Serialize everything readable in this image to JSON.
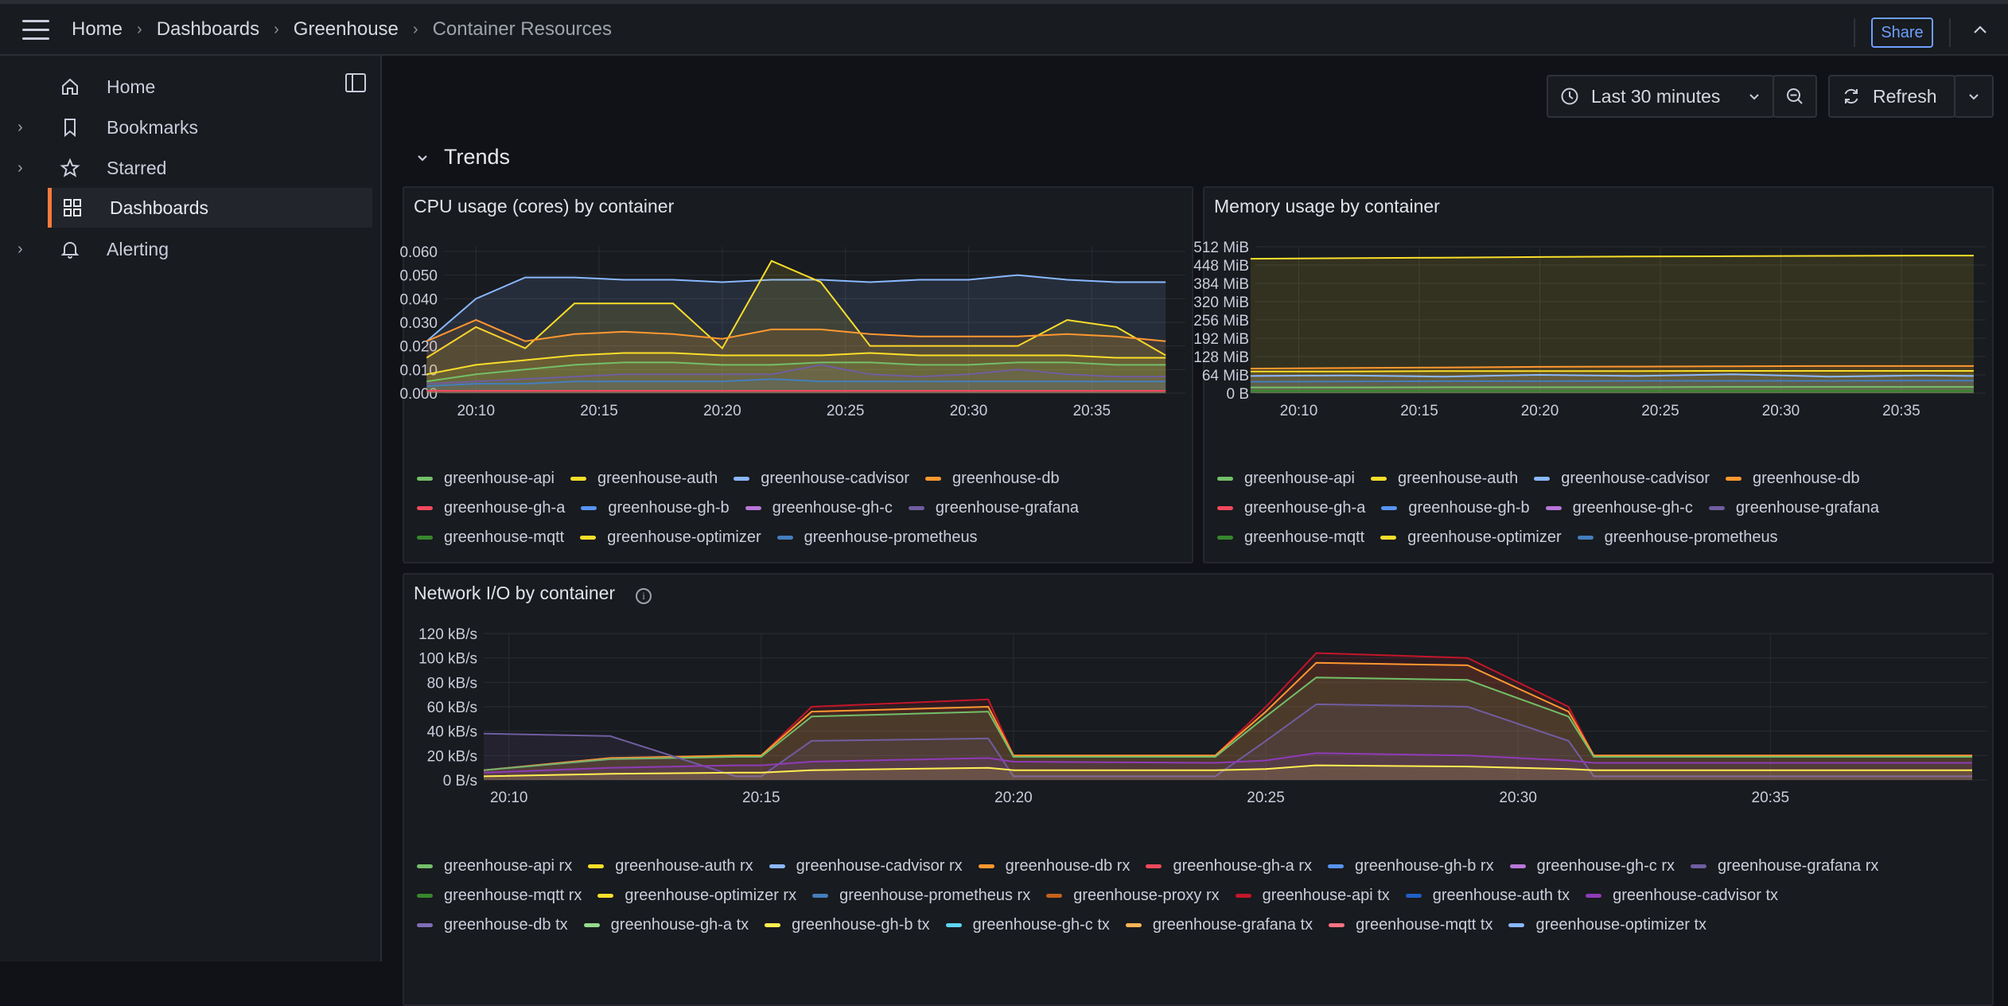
{
  "breadcrumb": {
    "items": [
      "Home",
      "Dashboards",
      "Greenhouse"
    ],
    "current": "Container Resources"
  },
  "topbar": {
    "share_label": "Share"
  },
  "sidebar": {
    "items": [
      {
        "label": "Home",
        "icon": "home-icon",
        "expandable": false,
        "active": false
      },
      {
        "label": "Bookmarks",
        "icon": "bookmark-icon",
        "expandable": true,
        "active": false
      },
      {
        "label": "Starred",
        "icon": "star-icon",
        "expandable": true,
        "active": false
      },
      {
        "label": "Dashboards",
        "icon": "apps-icon",
        "expandable": false,
        "active": true
      },
      {
        "label": "Alerting",
        "icon": "bell-icon",
        "expandable": true,
        "active": false
      }
    ]
  },
  "toolbar": {
    "time_range": "Last 30 minutes",
    "refresh_label": "Refresh"
  },
  "row": {
    "title": "Trends"
  },
  "colors": {
    "accent": "#ff7a3d",
    "link": "#6e9fff",
    "background": "#111217",
    "panel": "#181b1f"
  },
  "panels": {
    "cpu": {
      "title": "CPU usage (cores) by container",
      "legend": [
        {
          "name": "greenhouse-api",
          "color": "#73bf69"
        },
        {
          "name": "greenhouse-auth",
          "color": "#fade2a"
        },
        {
          "name": "greenhouse-cadvisor",
          "color": "#8ab8ff"
        },
        {
          "name": "greenhouse-db",
          "color": "#ff9830"
        },
        {
          "name": "greenhouse-gh-a",
          "color": "#f2495c"
        },
        {
          "name": "greenhouse-gh-b",
          "color": "#5794f2"
        },
        {
          "name": "greenhouse-gh-c",
          "color": "#b877d9"
        },
        {
          "name": "greenhouse-grafana",
          "color": "#705da0"
        },
        {
          "name": "greenhouse-mqtt",
          "color": "#37872d"
        },
        {
          "name": "greenhouse-optimizer",
          "color": "#fade2a"
        },
        {
          "name": "greenhouse-prometheus",
          "color": "#447ebc"
        }
      ]
    },
    "memory": {
      "title": "Memory usage by container",
      "legend": [
        {
          "name": "greenhouse-api",
          "color": "#73bf69"
        },
        {
          "name": "greenhouse-auth",
          "color": "#fade2a"
        },
        {
          "name": "greenhouse-cadvisor",
          "color": "#8ab8ff"
        },
        {
          "name": "greenhouse-db",
          "color": "#ff9830"
        },
        {
          "name": "greenhouse-gh-a",
          "color": "#f2495c"
        },
        {
          "name": "greenhouse-gh-b",
          "color": "#5794f2"
        },
        {
          "name": "greenhouse-gh-c",
          "color": "#b877d9"
        },
        {
          "name": "greenhouse-grafana",
          "color": "#705da0"
        },
        {
          "name": "greenhouse-mqtt",
          "color": "#37872d"
        },
        {
          "name": "greenhouse-optimizer",
          "color": "#fade2a"
        },
        {
          "name": "greenhouse-prometheus",
          "color": "#447ebc"
        }
      ]
    },
    "network": {
      "title": "Network I/O by container",
      "legend": [
        {
          "name": "greenhouse-api rx",
          "color": "#73bf69"
        },
        {
          "name": "greenhouse-auth rx",
          "color": "#fade2a"
        },
        {
          "name": "greenhouse-cadvisor rx",
          "color": "#8ab8ff"
        },
        {
          "name": "greenhouse-db rx",
          "color": "#ff9830"
        },
        {
          "name": "greenhouse-gh-a rx",
          "color": "#f2495c"
        },
        {
          "name": "greenhouse-gh-b rx",
          "color": "#5794f2"
        },
        {
          "name": "greenhouse-gh-c rx",
          "color": "#b877d9"
        },
        {
          "name": "greenhouse-grafana rx",
          "color": "#705da0"
        },
        {
          "name": "greenhouse-mqtt rx",
          "color": "#37872d"
        },
        {
          "name": "greenhouse-optimizer rx",
          "color": "#fade2a"
        },
        {
          "name": "greenhouse-prometheus rx",
          "color": "#447ebc"
        },
        {
          "name": "greenhouse-proxy rx",
          "color": "#c4621d"
        },
        {
          "name": "greenhouse-api tx",
          "color": "#c4162a"
        },
        {
          "name": "greenhouse-auth tx",
          "color": "#1f60c4"
        },
        {
          "name": "greenhouse-cadvisor tx",
          "color": "#8f3bb8"
        },
        {
          "name": "greenhouse-db tx",
          "color": "#806eb7"
        },
        {
          "name": "greenhouse-gh-a tx",
          "color": "#96d98d"
        },
        {
          "name": "greenhouse-gh-b tx",
          "color": "#ffee52"
        },
        {
          "name": "greenhouse-gh-c tx",
          "color": "#5fd4f5"
        },
        {
          "name": "greenhouse-grafana tx",
          "color": "#ffb357"
        },
        {
          "name": "greenhouse-mqtt tx",
          "color": "#ff7383"
        },
        {
          "name": "greenhouse-optimizer tx",
          "color": "#8ab8ff"
        }
      ]
    }
  },
  "chart_data": [
    {
      "type": "area",
      "title": "CPU usage (cores) by container",
      "x_ticks": [
        "20:10",
        "20:15",
        "20:20",
        "20:25",
        "20:30",
        "20:35"
      ],
      "y_ticks": [
        "0.000",
        "0.010",
        "0.020",
        "0.030",
        "0.040",
        "0.050",
        "0.060"
      ],
      "ylim": [
        0,
        0.062
      ],
      "x": [
        "20:08",
        "20:10",
        "20:12",
        "20:14",
        "20:16",
        "20:18",
        "20:20",
        "20:22",
        "20:24",
        "20:26",
        "20:28",
        "20:30",
        "20:32",
        "20:34",
        "20:36",
        "20:38"
      ],
      "series": [
        {
          "name": "greenhouse-cadvisor",
          "values": [
            0.022,
            0.04,
            0.049,
            0.049,
            0.048,
            0.048,
            0.047,
            0.048,
            0.048,
            0.047,
            0.048,
            0.048,
            0.05,
            0.048,
            0.047,
            0.047
          ]
        },
        {
          "name": "greenhouse-auth",
          "values": [
            0.015,
            0.028,
            0.019,
            0.038,
            0.038,
            0.038,
            0.019,
            0.056,
            0.047,
            0.02,
            0.02,
            0.02,
            0.02,
            0.031,
            0.028,
            0.016
          ]
        },
        {
          "name": "greenhouse-db",
          "values": [
            0.022,
            0.031,
            0.022,
            0.025,
            0.026,
            0.025,
            0.023,
            0.027,
            0.027,
            0.025,
            0.024,
            0.024,
            0.024,
            0.025,
            0.024,
            0.022
          ]
        },
        {
          "name": "greenhouse-optimizer",
          "values": [
            0.008,
            0.012,
            0.014,
            0.016,
            0.017,
            0.017,
            0.016,
            0.016,
            0.016,
            0.017,
            0.016,
            0.016,
            0.016,
            0.016,
            0.015,
            0.015
          ]
        },
        {
          "name": "greenhouse-api",
          "values": [
            0.005,
            0.008,
            0.01,
            0.012,
            0.013,
            0.013,
            0.012,
            0.012,
            0.013,
            0.013,
            0.012,
            0.012,
            0.013,
            0.013,
            0.012,
            0.012
          ]
        },
        {
          "name": "greenhouse-grafana",
          "values": [
            0.004,
            0.005,
            0.006,
            0.007,
            0.008,
            0.008,
            0.008,
            0.008,
            0.012,
            0.008,
            0.007,
            0.008,
            0.01,
            0.008,
            0.007,
            0.007
          ]
        },
        {
          "name": "greenhouse-prometheus",
          "values": [
            0.003,
            0.004,
            0.004,
            0.005,
            0.005,
            0.005,
            0.005,
            0.006,
            0.005,
            0.005,
            0.005,
            0.005,
            0.005,
            0.005,
            0.005,
            0.005
          ]
        },
        {
          "name": "greenhouse-gh-a",
          "values": [
            0.001,
            0.001,
            0.001,
            0.001,
            0.001,
            0.001,
            0.001,
            0.001,
            0.001,
            0.001,
            0.001,
            0.001,
            0.001,
            0.001,
            0.001,
            0.001
          ]
        }
      ]
    },
    {
      "type": "area",
      "title": "Memory usage by container",
      "x_ticks": [
        "20:10",
        "20:15",
        "20:20",
        "20:25",
        "20:30",
        "20:35"
      ],
      "y_ticks": [
        "0 B",
        "64 MiB",
        "128 MiB",
        "192 MiB",
        "256 MiB",
        "320 MiB",
        "384 MiB",
        "448 MiB",
        "512 MiB"
      ],
      "ylim": [
        0,
        512
      ],
      "x": [
        "20:08",
        "20:12",
        "20:16",
        "20:20",
        "20:24",
        "20:28",
        "20:32",
        "20:36",
        "20:38"
      ],
      "series": [
        {
          "name": "greenhouse-auth",
          "values": [
            470,
            472,
            474,
            476,
            478,
            479,
            480,
            481,
            481
          ]
        },
        {
          "name": "greenhouse-db",
          "values": [
            86,
            88,
            90,
            92,
            93,
            94,
            95,
            95,
            95
          ]
        },
        {
          "name": "greenhouse-optimizer",
          "values": [
            76,
            76,
            77,
            77,
            77,
            78,
            78,
            78,
            78
          ]
        },
        {
          "name": "greenhouse-cadvisor",
          "values": [
            60,
            62,
            58,
            64,
            60,
            66,
            58,
            62,
            60
          ]
        },
        {
          "name": "greenhouse-prometheus",
          "values": [
            40,
            41,
            42,
            42,
            43,
            43,
            43,
            44,
            44
          ]
        },
        {
          "name": "greenhouse-api",
          "values": [
            20,
            20,
            21,
            21,
            21,
            22,
            22,
            22,
            22
          ]
        },
        {
          "name": "greenhouse-mqtt",
          "values": [
            8,
            8,
            8,
            8,
            8,
            8,
            8,
            8,
            8
          ]
        }
      ]
    },
    {
      "type": "area",
      "title": "Network I/O by container",
      "x_ticks": [
        "20:10",
        "20:15",
        "20:20",
        "20:25",
        "20:30",
        "20:35"
      ],
      "y_ticks": [
        "0 B/s",
        "20 kB/s",
        "40 kB/s",
        "60 kB/s",
        "80 kB/s",
        "100 kB/s",
        "120 kB/s"
      ],
      "ylim": [
        0,
        120
      ],
      "x": [
        "20:09.5",
        "20:12",
        "20:14.5",
        "20:15",
        "20:16",
        "20:19.5",
        "20:20",
        "20:24",
        "20:25",
        "20:26",
        "20:29",
        "20:31",
        "20:31.5",
        "20:36",
        "20:39"
      ],
      "series": [
        {
          "name": "greenhouse-api tx",
          "values": [
            8,
            18,
            20,
            20,
            60,
            66,
            20,
            20,
            60,
            104,
            100,
            60,
            20,
            20,
            20
          ]
        },
        {
          "name": "greenhouse-db rx",
          "values": [
            8,
            18,
            20,
            20,
            56,
            60,
            20,
            20,
            56,
            96,
            94,
            56,
            20,
            20,
            20
          ]
        },
        {
          "name": "greenhouse-api rx",
          "values": [
            8,
            17,
            19,
            19,
            52,
            56,
            19,
            19,
            52,
            84,
            82,
            52,
            19,
            19,
            19
          ]
        },
        {
          "name": "greenhouse-grafana rx",
          "values": [
            38,
            36,
            3,
            3,
            32,
            34,
            3,
            3,
            32,
            62,
            60,
            32,
            3,
            3,
            3
          ]
        },
        {
          "name": "greenhouse-cadvisor tx",
          "values": [
            6,
            10,
            12,
            12,
            15,
            18,
            15,
            14,
            16,
            22,
            20,
            16,
            14,
            14,
            14
          ]
        },
        {
          "name": "greenhouse-gh-b tx",
          "values": [
            3,
            5,
            6,
            6,
            8,
            10,
            8,
            8,
            9,
            12,
            11,
            9,
            8,
            8,
            8
          ]
        }
      ]
    }
  ]
}
